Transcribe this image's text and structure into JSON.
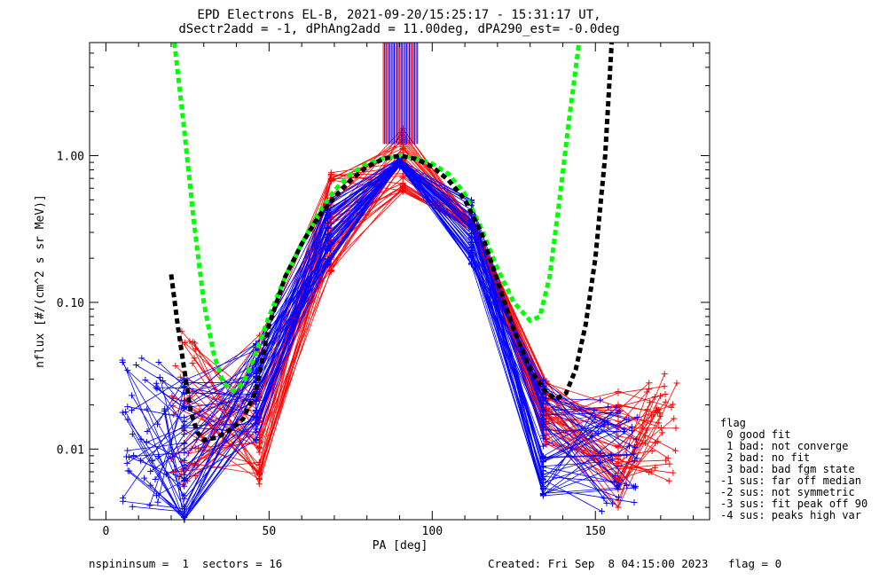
{
  "chart_data": {
    "type": "line",
    "title_lines": [
      "EPD Electrons EL-B, 2021-09-20/15:25:17 - 15:31:17 UT,",
      "dSectr2add = -1, dPhAng2add = 11.00deg, dPA290_est=  -0.0deg"
    ],
    "xlabel": "PA [deg]",
    "ylabel": "nflux [#/(cm^2 s sr MeV)]",
    "xlim": [
      -5,
      185
    ],
    "ylim": [
      0.0033,
      5.9
    ],
    "y_scale": "log",
    "x_ticks": [
      0,
      50,
      100,
      150
    ],
    "x_tick_labels": [
      "0",
      "50",
      "100",
      "150"
    ],
    "y_ticks": [
      0.01,
      0.1,
      1.0
    ],
    "y_tick_labels": [
      "0.01",
      "0.10",
      "1.00"
    ],
    "grid": false,
    "series": [
      {
        "color": "#0000ff",
        "symbol": "+",
        "pa": [
          12,
          24,
          46,
          68,
          90,
          112,
          134,
          156
        ],
        "typical_values": [
          0.012,
          0.009,
          0.025,
          0.3,
          0.9,
          0.3,
          0.012,
          0.009
        ]
      },
      {
        "color": "#ff0000",
        "symbol": "+",
        "pa": [
          25,
          47,
          69,
          91,
          113,
          135,
          157,
          170
        ],
        "typical_values": [
          0.02,
          0.018,
          0.35,
          0.95,
          0.32,
          0.018,
          0.01,
          0.015
        ]
      },
      {
        "color": "#00ff00",
        "style": "dashed",
        "x": [
          21,
          24,
          27,
          30,
          33,
          36,
          39,
          42,
          45,
          50,
          55,
          60,
          65,
          70,
          75,
          80,
          85,
          90,
          95,
          100,
          105,
          110,
          115,
          120,
          125,
          130,
          133,
          136,
          139,
          142,
          145
        ],
        "y": [
          5.9,
          1.5,
          0.35,
          0.1,
          0.045,
          0.028,
          0.025,
          0.028,
          0.04,
          0.08,
          0.15,
          0.25,
          0.4,
          0.58,
          0.75,
          0.88,
          0.96,
          1.0,
          0.96,
          0.88,
          0.75,
          0.55,
          0.32,
          0.17,
          0.1,
          0.075,
          0.08,
          0.15,
          0.5,
          1.8,
          5.9
        ]
      },
      {
        "color": "#000000",
        "style": "dashed",
        "x": [
          20,
          22,
          24,
          26,
          28,
          30,
          34,
          38,
          42,
          46,
          50,
          55,
          60,
          65,
          70,
          75,
          80,
          85,
          90,
          95,
          100,
          105,
          110,
          115,
          120,
          125,
          130,
          135,
          138,
          141,
          144,
          147,
          150,
          153,
          155
        ],
        "y": [
          0.155,
          0.07,
          0.035,
          0.018,
          0.013,
          0.0115,
          0.012,
          0.0135,
          0.016,
          0.025,
          0.07,
          0.15,
          0.25,
          0.38,
          0.52,
          0.68,
          0.84,
          0.95,
          1.0,
          0.95,
          0.84,
          0.68,
          0.5,
          0.3,
          0.14,
          0.065,
          0.035,
          0.024,
          0.022,
          0.024,
          0.035,
          0.07,
          0.2,
          1.0,
          5.9
        ]
      }
    ],
    "legend": {
      "position": "right",
      "title": "flag",
      "entries": [
        " 0 good fit",
        " 1 bad: not converge",
        " 2 bad: no fit",
        " 3 bad: bad fgm state",
        "-1 sus: far off median",
        "-2 sus: not symmetric",
        "-3 sus: fit peak off 90",
        "-4 sus: peaks high var"
      ]
    }
  },
  "footer": {
    "left": "nspininsum =  1  sectors = 16",
    "right": "Created: Fri Sep  8 04:15:00 2023   flag = 0"
  }
}
